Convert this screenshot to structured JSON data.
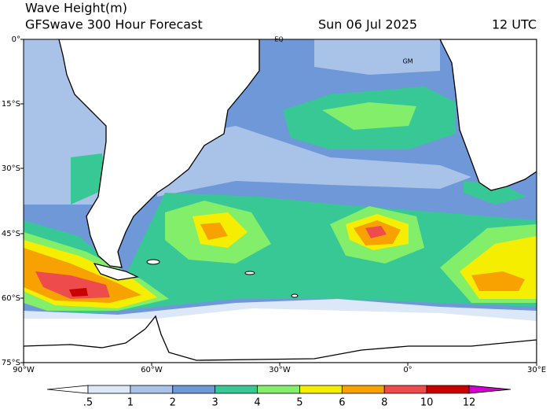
{
  "header": {
    "title": "Wave Height(m)",
    "subtitle": "GFSwave 300 Hour Forecast",
    "date": "Sun 06 Jul 2025",
    "time": "12 UTC"
  },
  "map": {
    "lat_labels": [
      "0°",
      "15°S",
      "30°S",
      "45°S",
      "60°S",
      "75°S"
    ],
    "lon_labels": [
      "90°W",
      "60°W",
      "30°W",
      "0°",
      "30°E"
    ],
    "place_labels": [
      "EQ",
      "GM"
    ]
  },
  "colorbar": {
    "labels": [
      ".5",
      "1",
      "2",
      "3",
      "4",
      "5",
      "6",
      "8",
      "10",
      "12"
    ],
    "colors": [
      "#ffffff",
      "#dce8f8",
      "#a9c2e8",
      "#6e98d8",
      "#38c896",
      "#82ee6a",
      "#f6ee00",
      "#f7a200",
      "#ee4c4c",
      "#c80000",
      "#d000d0"
    ]
  }
}
